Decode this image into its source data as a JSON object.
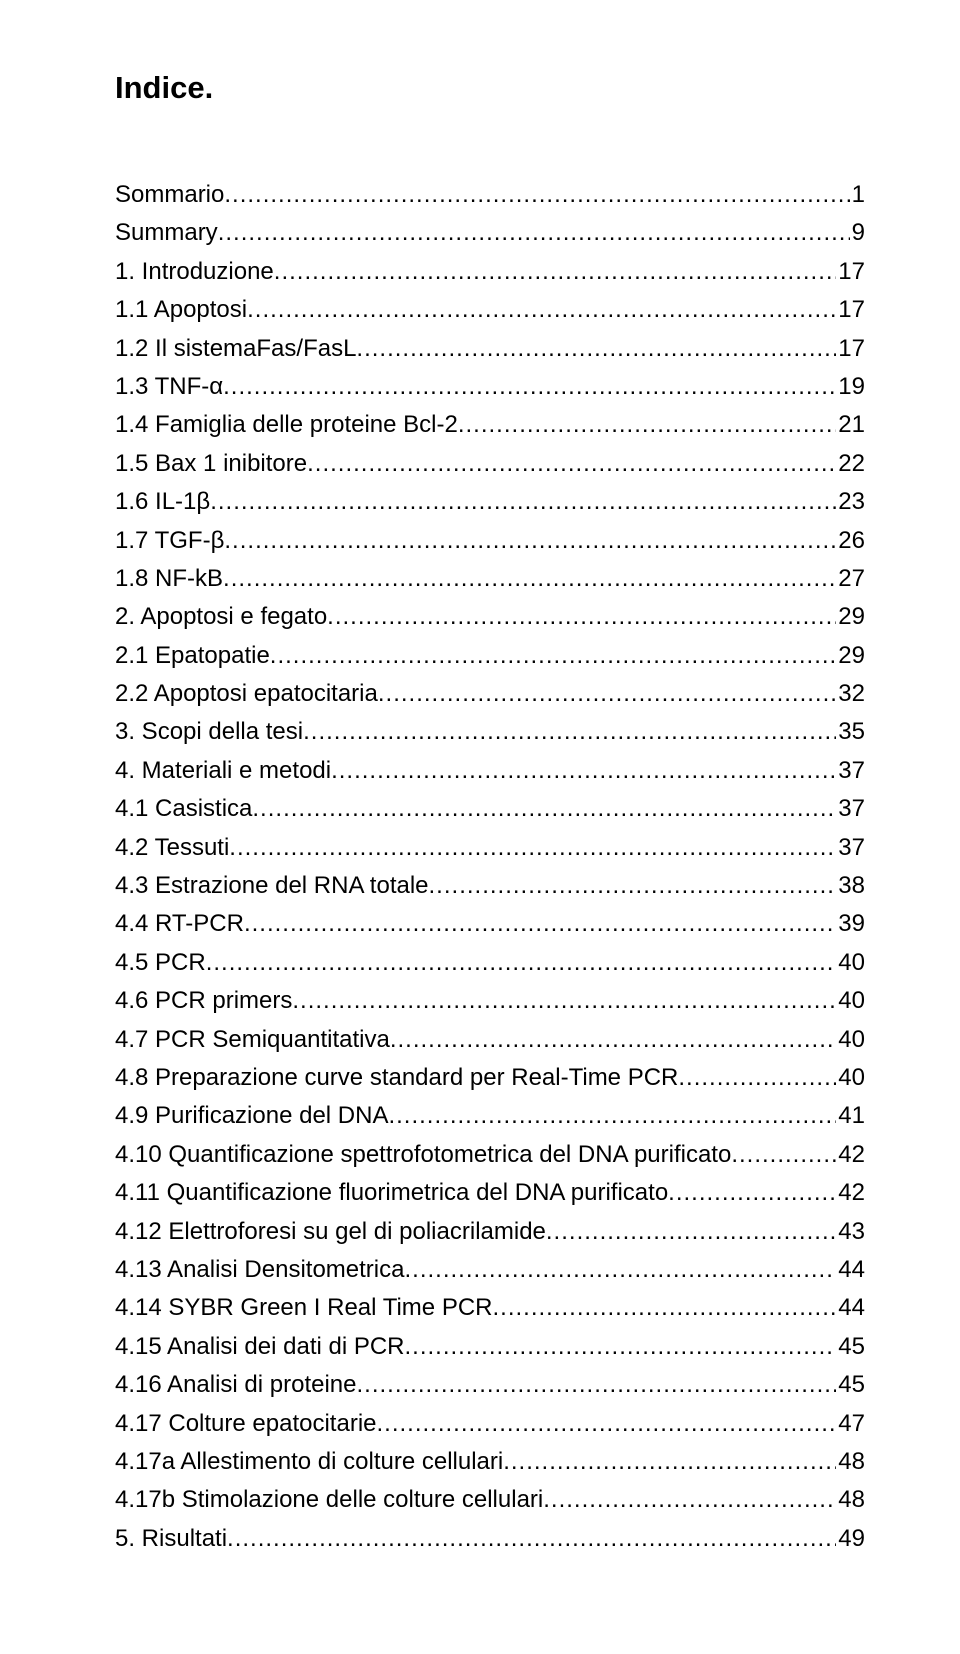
{
  "title": "Indice.",
  "entries": [
    {
      "label": "Sommario",
      "page": "1",
      "indent": 0
    },
    {
      "label": "Summary",
      "page": "9",
      "indent": 0
    },
    {
      "label": "1. Introduzione",
      "page": "17",
      "indent": 0
    },
    {
      "label": "1.1 Apoptosi",
      "page": "17",
      "indent": 0
    },
    {
      "label": "1.2 Il sistemaFas/FasL",
      "page": "17",
      "indent": 0
    },
    {
      "label": "1.3 TNF-α",
      "page": "19",
      "indent": 0
    },
    {
      "label": "1.4 Famiglia delle proteine Bcl-2",
      "page": "21",
      "indent": 0
    },
    {
      "label": "1.5 Bax 1 inibitore",
      "page": "22",
      "indent": 0
    },
    {
      "label": "1.6 IL-1β",
      "page": "23",
      "indent": 0
    },
    {
      "label": "1.7 TGF-β",
      "page": "26",
      "indent": 0
    },
    {
      "label": "1.8 NF-kB",
      "page": "27",
      "indent": 0
    },
    {
      "label": "2. Apoptosi e fegato",
      "page": "29",
      "indent": 0
    },
    {
      "label": "2.1 Epatopatie",
      "page": "29",
      "indent": 0
    },
    {
      "label": "2.2 Apoptosi epatocitaria",
      "page": "32",
      "indent": 0
    },
    {
      "label": "3. Scopi della tesi",
      "page": "35",
      "indent": 0
    },
    {
      "label": "4. Materiali e metodi",
      "page": "37",
      "indent": 0
    },
    {
      "label": "4.1 Casistica",
      "page": "37",
      "indent": 0
    },
    {
      "label": "4.2 Tessuti",
      "page": "37",
      "indent": 0
    },
    {
      "label": "4.3 Estrazione del RNA totale",
      "page": "38",
      "indent": 0
    },
    {
      "label": "4.4 RT-PCR",
      "page": "39",
      "indent": 0
    },
    {
      "label": "4.5 PCR",
      "page": "40",
      "indent": 0
    },
    {
      "label": "4.6 PCR primers",
      "page": "40",
      "indent": 0
    },
    {
      "label": "4.7 PCR Semiquantitativa",
      "page": "40",
      "indent": 0
    },
    {
      "label": "4.8 Preparazione curve standard per Real-Time PCR",
      "page": "40",
      "indent": 0
    },
    {
      "label": "4.9 Purificazione del DNA",
      "page": "41",
      "indent": 0
    },
    {
      "label": "4.10 Quantificazione spettrofotometrica del DNA purificato",
      "page": "42",
      "indent": 0
    },
    {
      "label": "4.11 Quantificazione fluorimetrica del DNA purificato",
      "page": "42",
      "indent": 0
    },
    {
      "label": "4.12 Elettroforesi su gel di poliacrilamide",
      "page": "43",
      "indent": 0
    },
    {
      "label": "4.13 Analisi Densitometrica",
      "page": "44",
      "indent": 0
    },
    {
      "label": "4.14 SYBR Green I Real Time PCR",
      "page": "44",
      "indent": 0
    },
    {
      "label": "4.15 Analisi dei dati di PCR",
      "page": "45",
      "indent": 0
    },
    {
      "label": "4.16 Analisi di proteine",
      "page": "45",
      "indent": 0
    },
    {
      "label": "4.17 Colture epatocitarie",
      "page": "47",
      "indent": 0
    },
    {
      "label": "4.17a Allestimento di colture cellulari",
      "page": "48",
      "indent": 0
    },
    {
      "label": "4.17b Stimolazione delle colture cellulari",
      "page": "48",
      "indent": 0
    },
    {
      "label": "5. Risultati",
      "page": "49",
      "indent": 0
    }
  ]
}
